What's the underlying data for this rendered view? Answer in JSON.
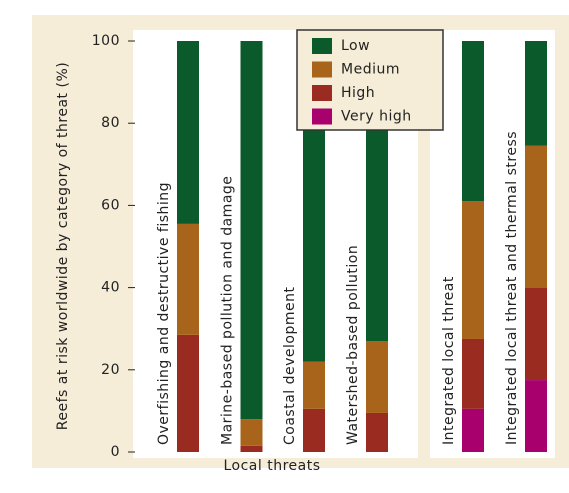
{
  "chart_data": {
    "type": "bar",
    "stacked": true,
    "y_label": "Reefs at risk worldwide by category of threat (%)",
    "x_label": "Local threats",
    "categories": [
      "Overfishing and destructive fishing",
      "Marine-based pollution and damage",
      "Coastal development",
      "Watershed-based pollution",
      "Integrated local threat",
      "Integrated local threat and thermal stress"
    ],
    "series": [
      {
        "name": "Low",
        "color": "#0b5a2b",
        "values": [
          44.5,
          92,
          78,
          73,
          39,
          25.5
        ]
      },
      {
        "name": "Medium",
        "color": "#a8641b",
        "values": [
          27,
          6.5,
          11.5,
          17.5,
          33.5,
          34.5
        ]
      },
      {
        "name": "High",
        "color": "#9a2b21",
        "values": [
          28.5,
          1.5,
          10.5,
          9.5,
          17,
          22.5
        ]
      },
      {
        "name": "Very high",
        "color": "#a8006d",
        "values": [
          0,
          0,
          0,
          0,
          10.5,
          17.5
        ]
      }
    ],
    "ylim": [
      0,
      100
    ],
    "yticks": [
      0,
      20,
      40,
      60,
      80,
      100
    ]
  }
}
